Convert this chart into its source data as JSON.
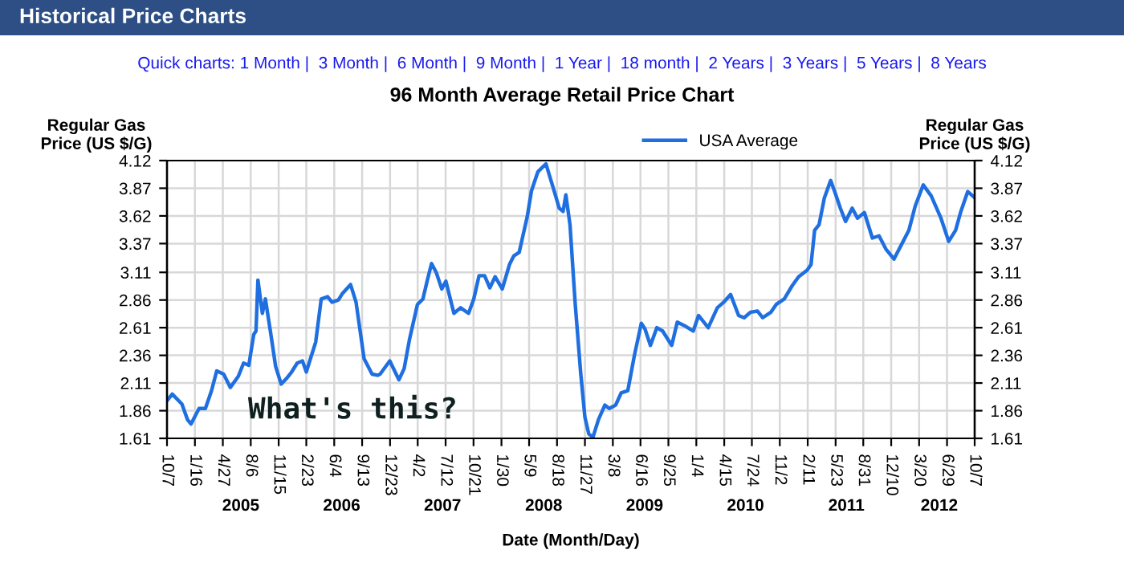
{
  "chart_data": {
    "type": "line",
    "title": "96 Month Average Retail Price Chart",
    "xlabel": "Date (Month/Day)",
    "ylabel": "Regular Gas\nPrice (US $/G)",
    "y2label": "Regular Gas\nPrice (US $/G)",
    "annotations": [
      "Historical Price Charts",
      "Quick charts: 1 Month |  3 Month |  6 Month |  9 Month |  1 Year |  18 month |  2 Years |  3 Years |  5 Years |  8 Years",
      "What's this?"
    ],
    "x": [
      "2004-10-07",
      "2004-10-26",
      "2004-11-30",
      "2004-12-20",
      "2005-01-02",
      "2005-01-31",
      "2005-02-23",
      "2005-03-17",
      "2005-04-05",
      "2005-04-30",
      "2005-05-24",
      "2005-06-22",
      "2005-07-11",
      "2005-07-30",
      "2005-08-17",
      "2005-08-25",
      "2005-09-01",
      "2005-09-17",
      "2005-09-28",
      "2005-10-16",
      "2005-11-04",
      "2005-11-24",
      "2005-12-13",
      "2006-01-01",
      "2006-01-21",
      "2006-02-09",
      "2006-02-23",
      "2006-03-10",
      "2006-03-29",
      "2006-04-18",
      "2006-05-11",
      "2006-05-27",
      "2006-06-19",
      "2006-07-04",
      "2006-08-02",
      "2006-08-22",
      "2006-09-20",
      "2006-10-19",
      "2006-11-08",
      "2006-11-17",
      "2006-12-22",
      "2007-01-24",
      "2007-02-12",
      "2007-03-03",
      "2007-04-01",
      "2007-04-21",
      "2007-05-06",
      "2007-05-22",
      "2007-06-08",
      "2007-06-28",
      "2007-07-13",
      "2007-07-27",
      "2007-08-11",
      "2007-09-04",
      "2007-10-03",
      "2007-10-22",
      "2007-11-10",
      "2007-11-30",
      "2007-12-19",
      "2008-01-07",
      "2008-02-02",
      "2008-02-28",
      "2008-03-15",
      "2008-04-03",
      "2008-05-02",
      "2008-05-18",
      "2008-06-10",
      "2008-07-09",
      "2008-08-07",
      "2008-08-26",
      "2008-09-09",
      "2008-09-19",
      "2008-10-04",
      "2008-10-23",
      "2008-11-12",
      "2008-11-27",
      "2008-12-11",
      "2008-12-26",
      "2009-01-15",
      "2009-02-07",
      "2009-02-23",
      "2009-03-18",
      "2009-04-07",
      "2009-05-01",
      "2009-05-25",
      "2009-06-19",
      "2009-07-02",
      "2009-07-22",
      "2009-08-14",
      "2009-09-04",
      "2009-10-07",
      "2009-10-27",
      "2009-11-21",
      "2009-12-24",
      "2010-01-12",
      "2010-02-16",
      "2010-03-21",
      "2010-04-13",
      "2010-05-08",
      "2010-06-06",
      "2010-06-26",
      "2010-07-19",
      "2010-08-13",
      "2010-09-01",
      "2010-10-01",
      "2010-10-20",
      "2010-11-18",
      "2010-12-17",
      "2011-01-09",
      "2011-02-09",
      "2011-02-23",
      "2011-03-08",
      "2011-03-24",
      "2011-04-12",
      "2011-05-05",
      "2011-05-21",
      "2011-06-09",
      "2011-06-28",
      "2011-07-22",
      "2011-08-10",
      "2011-09-04",
      "2011-10-03",
      "2011-10-27",
      "2011-11-21",
      "2011-12-20",
      "2012-01-14",
      "2012-02-12",
      "2012-03-06",
      "2012-04-04",
      "2012-05-03",
      "2012-06-07",
      "2012-07-05",
      "2012-07-30",
      "2012-08-18",
      "2012-09-12",
      "2012-10-05"
    ],
    "series": [
      {
        "name": "USA Average",
        "color": "#1f6fe0",
        "values": [
          1.95,
          2.01,
          1.92,
          1.78,
          1.74,
          1.88,
          1.88,
          2.04,
          2.22,
          2.19,
          2.07,
          2.17,
          2.29,
          2.27,
          2.55,
          2.58,
          3.04,
          2.74,
          2.87,
          2.58,
          2.26,
          2.1,
          2.15,
          2.21,
          2.29,
          2.31,
          2.21,
          2.33,
          2.48,
          2.87,
          2.89,
          2.84,
          2.86,
          2.92,
          3.0,
          2.84,
          2.33,
          2.19,
          2.18,
          2.19,
          2.31,
          2.14,
          2.24,
          2.5,
          2.82,
          2.87,
          3.03,
          3.19,
          3.11,
          2.96,
          3.03,
          2.89,
          2.74,
          2.79,
          2.74,
          2.87,
          3.08,
          3.08,
          2.97,
          3.07,
          2.96,
          3.18,
          3.26,
          3.29,
          3.61,
          3.85,
          4.02,
          4.09,
          3.85,
          3.69,
          3.66,
          3.81,
          3.54,
          2.82,
          2.19,
          1.8,
          1.65,
          1.62,
          1.78,
          1.91,
          1.88,
          1.91,
          2.02,
          2.04,
          2.36,
          2.65,
          2.6,
          2.45,
          2.61,
          2.58,
          2.45,
          2.66,
          2.63,
          2.58,
          2.72,
          2.61,
          2.79,
          2.84,
          2.91,
          2.72,
          2.7,
          2.75,
          2.76,
          2.7,
          2.75,
          2.82,
          2.87,
          2.99,
          3.07,
          3.13,
          3.18,
          3.49,
          3.54,
          3.78,
          3.94,
          3.83,
          3.69,
          3.57,
          3.69,
          3.6,
          3.65,
          3.42,
          3.44,
          3.32,
          3.23,
          3.35,
          3.49,
          3.71,
          3.9,
          3.8,
          3.6,
          3.39,
          3.49,
          3.66,
          3.84,
          3.79
        ]
      }
    ],
    "xlim": [
      "2004-10-07",
      "2012-10-07"
    ],
    "xticks": [
      {
        "value": "2004-10-07",
        "label": "10/7"
      },
      {
        "value": "2005-01-16",
        "label": "1/16"
      },
      {
        "value": "2005-04-27",
        "label": "4/27"
      },
      {
        "value": "2005-08-06",
        "label": "8/6"
      },
      {
        "value": "2005-11-15",
        "label": "11/15"
      },
      {
        "value": "2006-02-23",
        "label": "2/23"
      },
      {
        "value": "2006-06-04",
        "label": "6/4"
      },
      {
        "value": "2006-09-13",
        "label": "9/13"
      },
      {
        "value": "2006-12-23",
        "label": "12/23"
      },
      {
        "value": "2007-04-02",
        "label": "4/2"
      },
      {
        "value": "2007-07-12",
        "label": "7/12"
      },
      {
        "value": "2007-10-21",
        "label": "10/21"
      },
      {
        "value": "2008-01-30",
        "label": "1/30"
      },
      {
        "value": "2008-05-09",
        "label": "5/9"
      },
      {
        "value": "2008-08-18",
        "label": "8/18"
      },
      {
        "value": "2008-11-27",
        "label": "11/27"
      },
      {
        "value": "2009-03-08",
        "label": "3/8"
      },
      {
        "value": "2009-06-16",
        "label": "6/16"
      },
      {
        "value": "2009-09-25",
        "label": "9/25"
      },
      {
        "value": "2010-01-04",
        "label": "1/4"
      },
      {
        "value": "2010-04-15",
        "label": "4/15"
      },
      {
        "value": "2010-07-24",
        "label": "7/24"
      },
      {
        "value": "2010-11-02",
        "label": "11/2"
      },
      {
        "value": "2011-02-11",
        "label": "2/11"
      },
      {
        "value": "2011-05-23",
        "label": "5/23"
      },
      {
        "value": "2011-08-31",
        "label": "8/31"
      },
      {
        "value": "2011-12-10",
        "label": "12/10"
      },
      {
        "value": "2012-03-20",
        "label": "3/20"
      },
      {
        "value": "2012-06-29",
        "label": "6/29"
      },
      {
        "value": "2012-10-07",
        "label": "10/7"
      }
    ],
    "x2lim": [
      "2004-10-07",
      "2012-10-07"
    ],
    "x2ticks": [
      {
        "value": "2005-07-01",
        "label": "2005"
      },
      {
        "value": "2006-07-01",
        "label": "2006"
      },
      {
        "value": "2007-07-01",
        "label": "2007"
      },
      {
        "value": "2008-07-01",
        "label": "2008"
      },
      {
        "value": "2009-07-01",
        "label": "2009"
      },
      {
        "value": "2010-07-01",
        "label": "2010"
      },
      {
        "value": "2011-07-01",
        "label": "2011"
      },
      {
        "value": "2012-06-01",
        "label": "2012"
      }
    ],
    "ylim": [
      1.61,
      4.12
    ],
    "yticks": [
      1.61,
      1.86,
      2.11,
      2.36,
      2.61,
      2.86,
      3.11,
      3.37,
      3.62,
      3.87,
      4.12
    ],
    "y2lim": [
      1.61,
      4.12
    ],
    "y2ticks": [
      1.61,
      1.86,
      2.11,
      2.36,
      2.61,
      2.86,
      3.11,
      3.37,
      3.62,
      3.87,
      4.12
    ],
    "grid": true,
    "legend": "top right",
    "marker": "none",
    "line_style": "solid"
  }
}
